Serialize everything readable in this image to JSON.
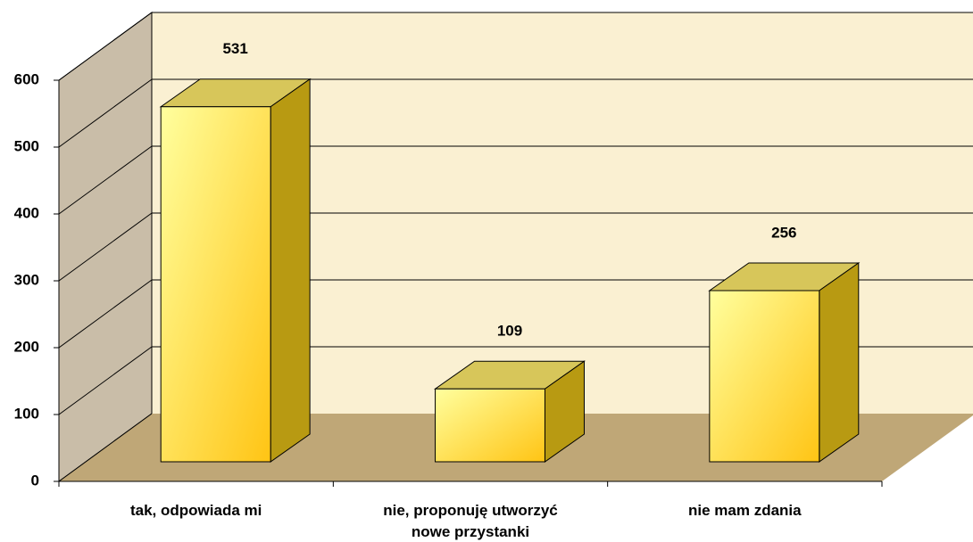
{
  "chart_data": {
    "type": "bar3d",
    "categories": [
      "tak, odpowiada mi",
      "nie, proponuję utworzyć\nnowe przystanki",
      "nie mam zdania"
    ],
    "values": [
      531,
      109,
      256
    ],
    "ylim": [
      0,
      600
    ],
    "yticks": [
      0,
      100,
      200,
      300,
      400,
      500,
      600
    ],
    "grid": true,
    "color": "#ffd22e"
  }
}
